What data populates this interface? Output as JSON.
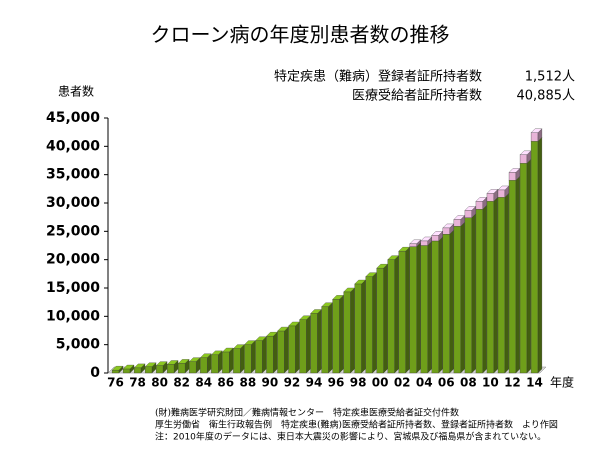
{
  "chart_data": {
    "type": "bar3d-stacked",
    "title": "クローン病の年度別患者数の推移",
    "y_label": "患者数",
    "x_label": "年度",
    "categories": [
      "76",
      null,
      "78",
      null,
      "80",
      null,
      "82",
      null,
      "84",
      null,
      "86",
      null,
      "88",
      null,
      "90",
      null,
      "92",
      null,
      "94",
      null,
      "96",
      null,
      "98",
      null,
      "00",
      null,
      "02",
      null,
      "04",
      null,
      "06",
      null,
      "08",
      null,
      "10",
      null,
      "12",
      null,
      "14"
    ],
    "series": [
      {
        "name": "医療受給者証所持者数",
        "color": "#6f9f1a",
        "values": [
          500,
          700,
          900,
          1100,
          1300,
          1500,
          1700,
          2000,
          2700,
          3200,
          3700,
          4300,
          5000,
          5700,
          6500,
          7400,
          8300,
          9400,
          10500,
          11700,
          13000,
          14300,
          15700,
          17000,
          18500,
          20000,
          21500,
          22300,
          22500,
          23300,
          24500,
          25900,
          27400,
          28900,
          30300,
          31000,
          34000,
          37000,
          40885
        ]
      },
      {
        "name": "特定疾患（難病）登録者証所持者数",
        "color": "#e8b4d8",
        "values": [
          null,
          null,
          null,
          null,
          null,
          null,
          null,
          null,
          null,
          null,
          null,
          null,
          null,
          null,
          null,
          null,
          null,
          null,
          null,
          null,
          null,
          null,
          null,
          null,
          null,
          null,
          null,
          500,
          800,
          1000,
          1100,
          1200,
          1300,
          1400,
          1400,
          1300,
          1400,
          1500,
          1512
        ]
      }
    ],
    "legend_values": [
      "40,885人",
      "1,512人"
    ],
    "ylim": [
      0,
      45000
    ],
    "yticks": [
      0,
      {
        "value": 5000,
        "label": "5,000"
      },
      {
        "value": 10000,
        "label": "10,000"
      },
      {
        "value": 15000,
        "label": "15,000"
      },
      {
        "value": 20000,
        "label": "20,000"
      },
      {
        "value": 25000,
        "label": "25,000"
      },
      {
        "value": 30000,
        "label": "30,000"
      },
      {
        "value": 35000,
        "label": "35,000"
      },
      {
        "value": 40000,
        "label": "40,000"
      },
      {
        "value": 45000,
        "label": "45,000"
      }
    ],
    "notes": [
      "(財)難病医学研究財団／難病情報センター　特定疾患医療受給者証交付件数",
      "厚生労働省　衛生行政報告例　特定疾患(難病)医療受給者証所持者数、登録者証所持者数　より作図",
      "注：2010年度のデータには、東日本大震災の影響により、宮城県及び福島県が含まれていない。"
    ]
  }
}
